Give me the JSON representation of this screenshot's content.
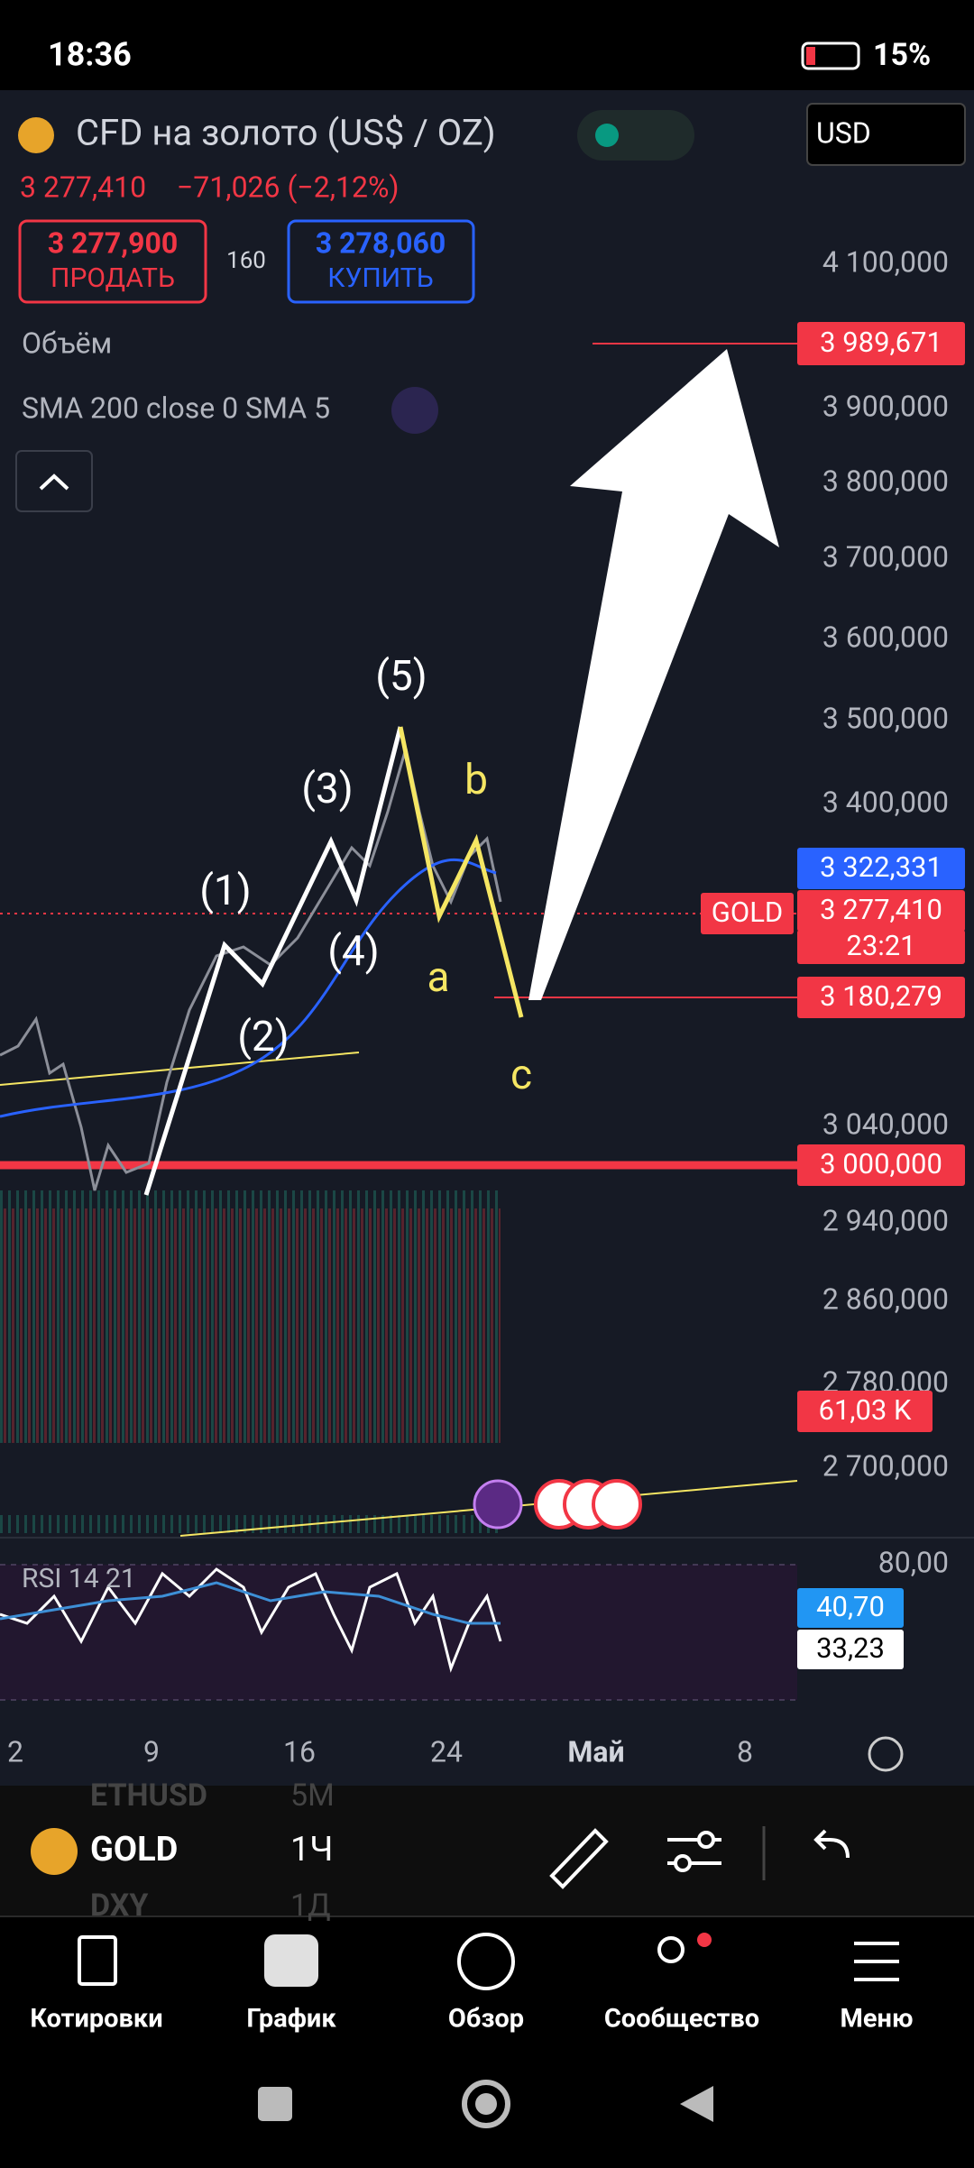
{
  "status_bar": {
    "time": "18:36",
    "battery": "15%"
  },
  "header": {
    "title": "CFD на золото (US$ / OZ)",
    "price": "3 277,410",
    "change": "−71,026 (−2,12%)",
    "sell_price": "3 277,900",
    "sell_label": "ПРОДАТЬ",
    "spread": "160",
    "buy_price": "3 278,060",
    "buy_label": "КУПИТЬ",
    "currency": "USD"
  },
  "indicators": {
    "volume": "Объём",
    "sma": "SMA 200 close 0 SMA 5",
    "rsi": "RSI 14 21"
  },
  "price_axis": [
    "4 100,000",
    "3 900,000",
    "3 800,000",
    "3 700,000",
    "3 600,000",
    "3 500,000",
    "3 400,000",
    "3 040,000",
    "2 940,000",
    "2 860,000",
    "2 780,000",
    "2 700,000",
    "80,00"
  ],
  "price_tags": [
    "3 989,671",
    "3 322,331",
    "3 277,410",
    "23:21",
    "3 180,279",
    "3 000,000",
    "61,03 K",
    "40,70",
    "33,23",
    "GOLD"
  ],
  "wave_labels": [
    "(1)",
    "(2)",
    "(3)",
    "(4)",
    "(5)",
    "a",
    "b",
    "c"
  ],
  "time_axis": [
    "2",
    "9",
    "16",
    "24",
    "Май",
    "8"
  ],
  "watchlist": {
    "symbol": "GOLD",
    "interval": "1Ч",
    "prev_symbol": "ETHUSD",
    "prev_interval": "5М",
    "next_symbol": "DXY",
    "next_interval": "1Д"
  },
  "nav": [
    "Котировки",
    "График",
    "Обзор",
    "Сообщество",
    "Меню"
  ]
}
